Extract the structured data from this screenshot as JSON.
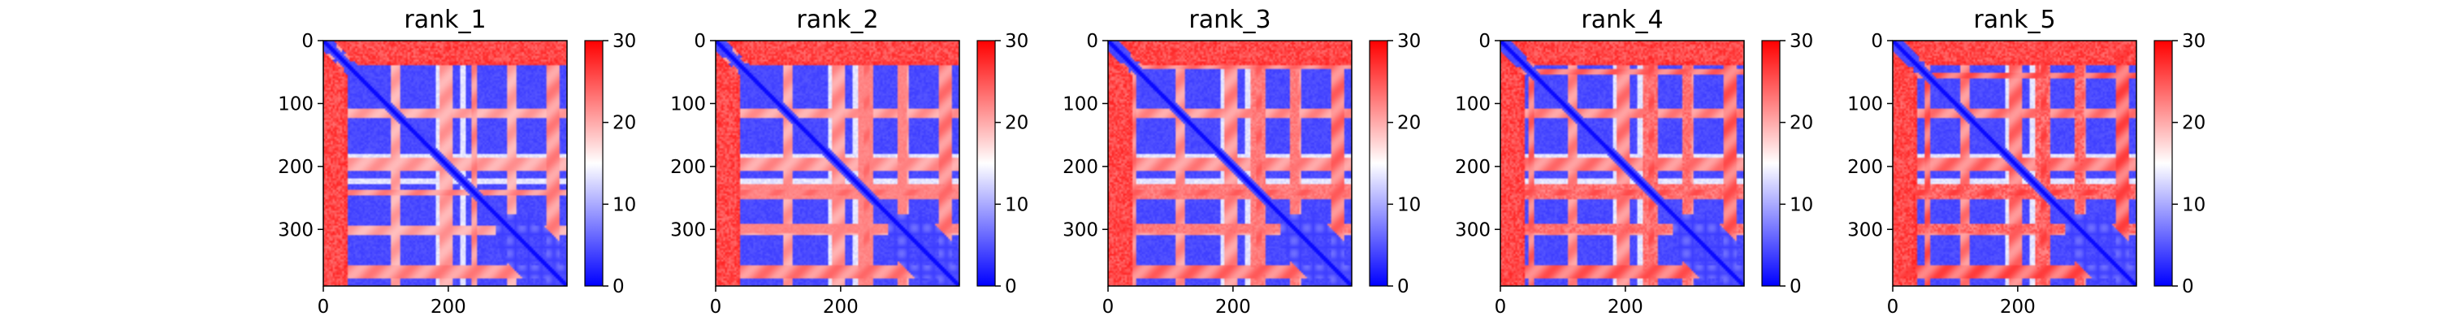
{
  "chart_data": [
    {
      "type": "heatmap",
      "title": "rank_1",
      "xticks": [
        0,
        200
      ],
      "yticks": [
        0,
        100,
        200,
        300
      ],
      "xlim": [
        0,
        390
      ],
      "ylim": [
        390,
        0
      ],
      "colorbar": {
        "ticks": [
          0,
          10,
          20,
          30
        ],
        "range": [
          0,
          30
        ],
        "colormap": "bwr"
      },
      "colors": {
        "low": "#0000ff",
        "mid": "#ffffff",
        "high": "#ff0000"
      }
    },
    {
      "type": "heatmap",
      "title": "rank_2",
      "xticks": [
        0,
        200
      ],
      "yticks": [
        0,
        100,
        200,
        300
      ],
      "xlim": [
        0,
        390
      ],
      "ylim": [
        390,
        0
      ],
      "colorbar": {
        "ticks": [
          0,
          10,
          20,
          30
        ],
        "range": [
          0,
          30
        ],
        "colormap": "bwr"
      },
      "colors": {
        "low": "#0000ff",
        "mid": "#ffffff",
        "high": "#ff0000"
      }
    },
    {
      "type": "heatmap",
      "title": "rank_3",
      "xticks": [
        0,
        200
      ],
      "yticks": [
        0,
        100,
        200,
        300
      ],
      "xlim": [
        0,
        390
      ],
      "ylim": [
        390,
        0
      ],
      "colorbar": {
        "ticks": [
          0,
          10,
          20,
          30
        ],
        "range": [
          0,
          30
        ],
        "colormap": "bwr"
      },
      "colors": {
        "low": "#0000ff",
        "mid": "#ffffff",
        "high": "#ff0000"
      }
    },
    {
      "type": "heatmap",
      "title": "rank_4",
      "xticks": [
        0,
        200
      ],
      "yticks": [
        0,
        100,
        200,
        300
      ],
      "xlim": [
        0,
        390
      ],
      "ylim": [
        390,
        0
      ],
      "colorbar": {
        "ticks": [
          0,
          10,
          20,
          30
        ],
        "range": [
          0,
          30
        ],
        "colormap": "bwr"
      },
      "colors": {
        "low": "#0000ff",
        "mid": "#ffffff",
        "high": "#ff0000"
      }
    },
    {
      "type": "heatmap",
      "title": "rank_5",
      "xticks": [
        0,
        200
      ],
      "yticks": [
        0,
        100,
        200,
        300
      ],
      "xlim": [
        0,
        390
      ],
      "ylim": [
        390,
        0
      ],
      "colorbar": {
        "ticks": [
          0,
          10,
          20,
          30
        ],
        "range": [
          0,
          30
        ],
        "colormap": "bwr"
      },
      "colors": {
        "low": "#0000ff",
        "mid": "#ffffff",
        "high": "#ff0000"
      }
    }
  ]
}
